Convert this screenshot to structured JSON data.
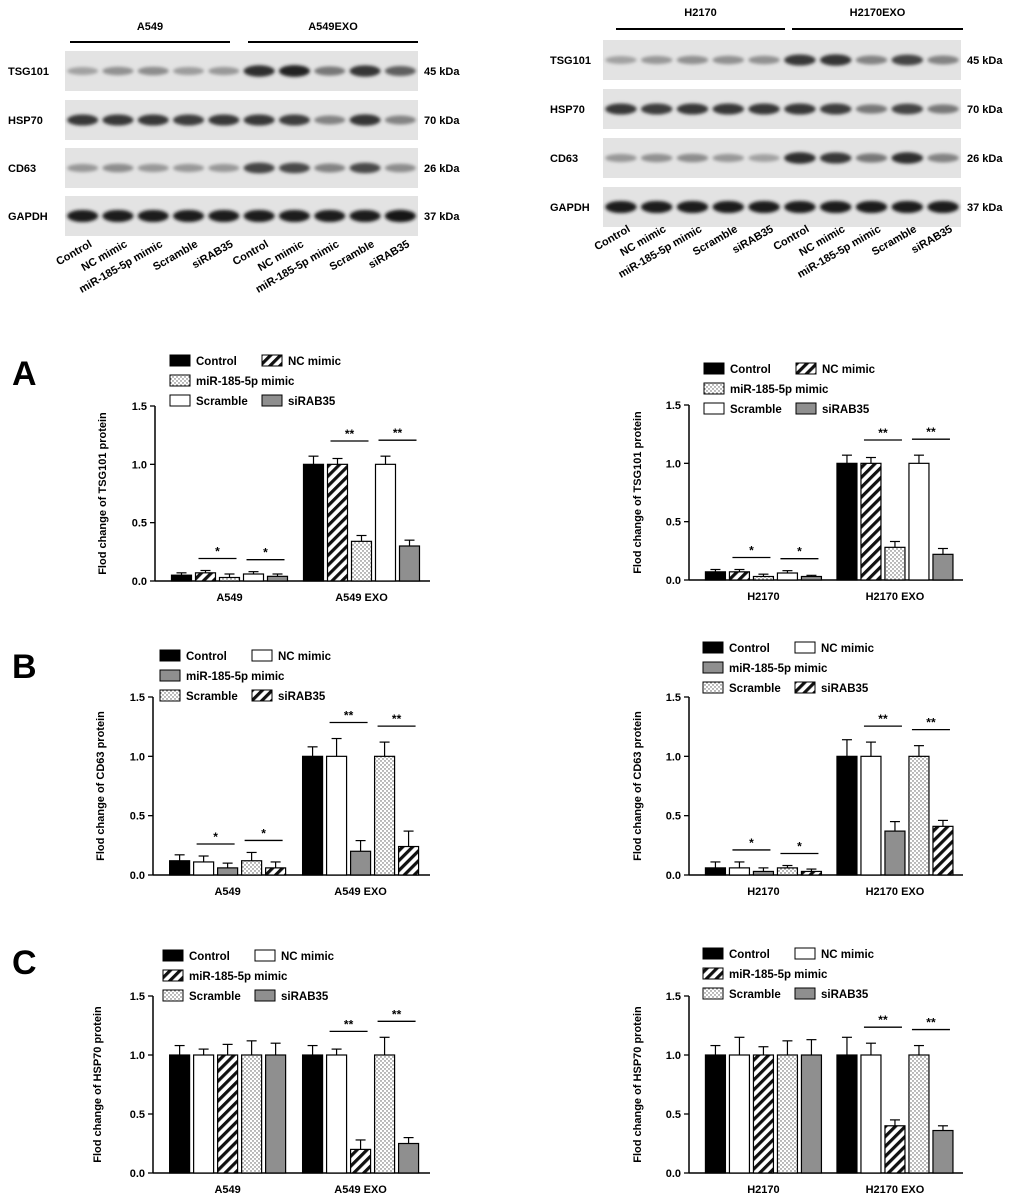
{
  "blots": [
    {
      "header_groups": [
        "A549",
        "A549EXO"
      ],
      "rows": [
        {
          "name": "TSG101",
          "kda": "45 kDa",
          "intensities": [
            0.3,
            0.38,
            0.4,
            0.33,
            0.35,
            0.85,
            0.9,
            0.5,
            0.82,
            0.62
          ]
        },
        {
          "name": "HSP70",
          "kda": "70 kDa",
          "intensities": [
            0.8,
            0.8,
            0.8,
            0.78,
            0.8,
            0.8,
            0.78,
            0.45,
            0.82,
            0.45
          ]
        },
        {
          "name": "CD63",
          "kda": "26 kDa",
          "intensities": [
            0.35,
            0.4,
            0.35,
            0.35,
            0.35,
            0.75,
            0.72,
            0.45,
            0.72,
            0.4
          ]
        },
        {
          "name": "GAPDH",
          "kda": "37 kDa",
          "intensities": [
            0.95,
            0.95,
            0.95,
            0.95,
            0.95,
            0.95,
            0.95,
            0.95,
            0.95,
            0.98
          ]
        }
      ],
      "lanes": [
        "Control",
        "NC mimic",
        "miR-185-5p mimic",
        "Scramble",
        "siRAB35",
        "Control",
        "NC mimic",
        "miR-185-5p mimic",
        "Scramble",
        "siRAB35"
      ]
    },
    {
      "header_groups": [
        "H2170",
        "H2170EXO"
      ],
      "rows": [
        {
          "name": "TSG101",
          "kda": "45 kDa",
          "intensities": [
            0.3,
            0.35,
            0.38,
            0.38,
            0.38,
            0.8,
            0.82,
            0.45,
            0.75,
            0.45
          ]
        },
        {
          "name": "HSP70",
          "kda": "70 kDa",
          "intensities": [
            0.8,
            0.78,
            0.8,
            0.8,
            0.8,
            0.8,
            0.78,
            0.5,
            0.75,
            0.5
          ]
        },
        {
          "name": "CD63",
          "kda": "26 kDa",
          "intensities": [
            0.35,
            0.38,
            0.4,
            0.35,
            0.3,
            0.85,
            0.8,
            0.5,
            0.85,
            0.45
          ]
        },
        {
          "name": "GAPDH",
          "kda": "37 kDa",
          "intensities": [
            0.95,
            0.95,
            0.95,
            0.95,
            0.95,
            0.95,
            0.95,
            0.95,
            0.95,
            0.95
          ]
        }
      ],
      "lanes": [
        "Control",
        "NC mimic",
        "miR-185-5p mimic",
        "Scramble",
        "siRAB35",
        "Control",
        "NC mimic",
        "miR-185-5p mimic",
        "Scramble",
        "siRAB35"
      ]
    }
  ],
  "panel_letters": [
    "A",
    "B",
    "C"
  ],
  "chart_data": [
    {
      "type": "bar",
      "panel": "A",
      "ylabel": "Flod change of  TSG101 protein",
      "categories": [
        "A549",
        "A549 EXO"
      ],
      "ylim": [
        0,
        1.5
      ],
      "yticks": [
        "0.0",
        "0.5",
        "1.0",
        "1.5"
      ],
      "series": [
        {
          "name": "Control",
          "fill": "solid",
          "values": [
            0.05,
            1.0
          ],
          "errors": [
            0.02,
            0.07
          ]
        },
        {
          "name": "NC mimic",
          "fill": "hatch",
          "values": [
            0.07,
            1.0
          ],
          "errors": [
            0.02,
            0.05
          ]
        },
        {
          "name": "miR-185-5p mimic",
          "fill": "dots",
          "values": [
            0.03,
            0.34
          ],
          "errors": [
            0.03,
            0.05
          ]
        },
        {
          "name": "Scramble",
          "fill": "white",
          "values": [
            0.06,
            1.0
          ],
          "errors": [
            0.02,
            0.07
          ]
        },
        {
          "name": "siRAB35",
          "fill": "gray",
          "values": [
            0.04,
            0.3
          ],
          "errors": [
            0.02,
            0.05
          ]
        }
      ],
      "legend_rows": [
        [
          "Control",
          "NC mimic"
        ],
        [
          "miR-185-5p mimic"
        ],
        [
          "Scramble",
          "siRAB35"
        ]
      ],
      "significance": [
        [
          0,
          1,
          2,
          "*"
        ],
        [
          0,
          3,
          4,
          "*"
        ],
        [
          1,
          1,
          2,
          "**"
        ],
        [
          1,
          3,
          4,
          "**"
        ]
      ]
    },
    {
      "type": "bar",
      "panel": "A",
      "ylabel": "Flod change of  TSG101 protein",
      "categories": [
        "H2170",
        "H2170 EXO"
      ],
      "ylim": [
        0,
        1.5
      ],
      "yticks": [
        "0.0",
        "0.5",
        "1.0",
        "1.5"
      ],
      "series": [
        {
          "name": "Control",
          "fill": "solid",
          "values": [
            0.07,
            1.0
          ],
          "errors": [
            0.02,
            0.07
          ]
        },
        {
          "name": "NC mimic",
          "fill": "hatch",
          "values": [
            0.07,
            1.0
          ],
          "errors": [
            0.02,
            0.05
          ]
        },
        {
          "name": "miR-185-5p mimic",
          "fill": "dots",
          "values": [
            0.03,
            0.28
          ],
          "errors": [
            0.02,
            0.05
          ]
        },
        {
          "name": "Scramble",
          "fill": "white",
          "values": [
            0.06,
            1.0
          ],
          "errors": [
            0.02,
            0.07
          ]
        },
        {
          "name": "siRAB35",
          "fill": "gray",
          "values": [
            0.03,
            0.22
          ],
          "errors": [
            0.01,
            0.05
          ]
        }
      ],
      "legend_rows": [
        [
          "Control",
          "NC mimic"
        ],
        [
          "miR-185-5p mimic"
        ],
        [
          "Scramble",
          "siRAB35"
        ]
      ],
      "significance": [
        [
          0,
          1,
          2,
          "*"
        ],
        [
          0,
          3,
          4,
          "*"
        ],
        [
          1,
          1,
          2,
          "**"
        ],
        [
          1,
          3,
          4,
          "**"
        ]
      ]
    },
    {
      "type": "bar",
      "panel": "B",
      "ylabel": "Flod change of  CD63  protein",
      "categories": [
        "A549",
        "A549 EXO"
      ],
      "ylim": [
        0,
        1.5
      ],
      "yticks": [
        "0.0",
        "0.5",
        "1.0",
        "1.5"
      ],
      "series": [
        {
          "name": "Control",
          "fill": "solid",
          "values": [
            0.12,
            1.0
          ],
          "errors": [
            0.05,
            0.08
          ]
        },
        {
          "name": "NC mimic",
          "fill": "white",
          "values": [
            0.11,
            1.0
          ],
          "errors": [
            0.05,
            0.15
          ]
        },
        {
          "name": "miR-185-5p mimic",
          "fill": "gray",
          "values": [
            0.06,
            0.2
          ],
          "errors": [
            0.04,
            0.09
          ]
        },
        {
          "name": "Scramble",
          "fill": "dots",
          "values": [
            0.12,
            1.0
          ],
          "errors": [
            0.07,
            0.12
          ]
        },
        {
          "name": "siRAB35",
          "fill": "hatch",
          "values": [
            0.06,
            0.24
          ],
          "errors": [
            0.05,
            0.13
          ]
        }
      ],
      "legend_rows": [
        [
          "Control",
          "NC mimic"
        ],
        [
          "miR-185-5p mimic"
        ],
        [
          "Scramble",
          "siRAB35"
        ]
      ],
      "significance": [
        [
          0,
          1,
          2,
          "*"
        ],
        [
          0,
          3,
          4,
          "*"
        ],
        [
          1,
          1,
          2,
          "**"
        ],
        [
          1,
          3,
          4,
          "**"
        ]
      ]
    },
    {
      "type": "bar",
      "panel": "B",
      "ylabel": "Flod change of  CD63  protein",
      "categories": [
        "H2170",
        "H2170 EXO"
      ],
      "ylim": [
        0,
        1.5
      ],
      "yticks": [
        "0.0",
        "0.5",
        "1.0",
        "1.5"
      ],
      "series": [
        {
          "name": "Control",
          "fill": "solid",
          "values": [
            0.06,
            1.0
          ],
          "errors": [
            0.05,
            0.14
          ]
        },
        {
          "name": "NC mimic",
          "fill": "white",
          "values": [
            0.06,
            1.0
          ],
          "errors": [
            0.05,
            0.12
          ]
        },
        {
          "name": "miR-185-5p mimic",
          "fill": "gray",
          "values": [
            0.03,
            0.37
          ],
          "errors": [
            0.03,
            0.08
          ]
        },
        {
          "name": "Scramble",
          "fill": "dots",
          "values": [
            0.06,
            1.0
          ],
          "errors": [
            0.02,
            0.09
          ]
        },
        {
          "name": "siRAB35",
          "fill": "hatch",
          "values": [
            0.03,
            0.41
          ],
          "errors": [
            0.02,
            0.05
          ]
        }
      ],
      "legend_rows": [
        [
          "Control",
          "NC mimic"
        ],
        [
          "miR-185-5p mimic"
        ],
        [
          "Scramble",
          "siRAB35"
        ]
      ],
      "significance": [
        [
          0,
          1,
          2,
          "*"
        ],
        [
          0,
          3,
          4,
          "*"
        ],
        [
          1,
          1,
          2,
          "**"
        ],
        [
          1,
          3,
          4,
          "**"
        ]
      ]
    },
    {
      "type": "bar",
      "panel": "C",
      "ylabel": "Flod change of  HSP70 protein",
      "categories": [
        "A549",
        "A549 EXO"
      ],
      "ylim": [
        0,
        1.5
      ],
      "yticks": [
        "0.0",
        "0.5",
        "1.0",
        "1.5"
      ],
      "series": [
        {
          "name": "Control",
          "fill": "solid",
          "values": [
            1.0,
            1.0
          ],
          "errors": [
            0.08,
            0.08
          ]
        },
        {
          "name": "NC mimic",
          "fill": "white",
          "values": [
            1.0,
            1.0
          ],
          "errors": [
            0.05,
            0.05
          ]
        },
        {
          "name": "miR-185-5p mimic",
          "fill": "hatch",
          "values": [
            1.0,
            0.2
          ],
          "errors": [
            0.09,
            0.08
          ]
        },
        {
          "name": "Scramble",
          "fill": "dots",
          "values": [
            1.0,
            1.0
          ],
          "errors": [
            0.12,
            0.15
          ]
        },
        {
          "name": "siRAB35",
          "fill": "gray",
          "values": [
            1.0,
            0.25
          ],
          "errors": [
            0.1,
            0.05
          ]
        }
      ],
      "legend_rows": [
        [
          "Control",
          "NC mimic"
        ],
        [
          "miR-185-5p mimic"
        ],
        [
          "Scramble",
          "siRAB35"
        ]
      ],
      "significance": [
        [
          1,
          1,
          2,
          "**"
        ],
        [
          1,
          3,
          4,
          "**"
        ]
      ]
    },
    {
      "type": "bar",
      "panel": "C",
      "ylabel": "Flod change of  HSP70 protein",
      "categories": [
        "H2170",
        "H2170 EXO"
      ],
      "ylim": [
        0,
        1.5
      ],
      "yticks": [
        "0.0",
        "0.5",
        "1.0",
        "1.5"
      ],
      "series": [
        {
          "name": "Control",
          "fill": "solid",
          "values": [
            1.0,
            1.0
          ],
          "errors": [
            0.08,
            0.15
          ]
        },
        {
          "name": "NC mimic",
          "fill": "white",
          "values": [
            1.0,
            1.0
          ],
          "errors": [
            0.15,
            0.1
          ]
        },
        {
          "name": "miR-185-5p mimic",
          "fill": "hatch",
          "values": [
            1.0,
            0.4
          ],
          "errors": [
            0.07,
            0.05
          ]
        },
        {
          "name": "Scramble",
          "fill": "dots",
          "values": [
            1.0,
            1.0
          ],
          "errors": [
            0.12,
            0.08
          ]
        },
        {
          "name": "siRAB35",
          "fill": "gray",
          "values": [
            1.0,
            0.36
          ],
          "errors": [
            0.13,
            0.04
          ]
        }
      ],
      "legend_rows": [
        [
          "Control",
          "NC mimic"
        ],
        [
          "miR-185-5p mimic"
        ],
        [
          "Scramble",
          "siRAB35"
        ]
      ],
      "significance": [
        [
          1,
          1,
          2,
          "**"
        ],
        [
          1,
          3,
          4,
          "**"
        ]
      ]
    }
  ]
}
